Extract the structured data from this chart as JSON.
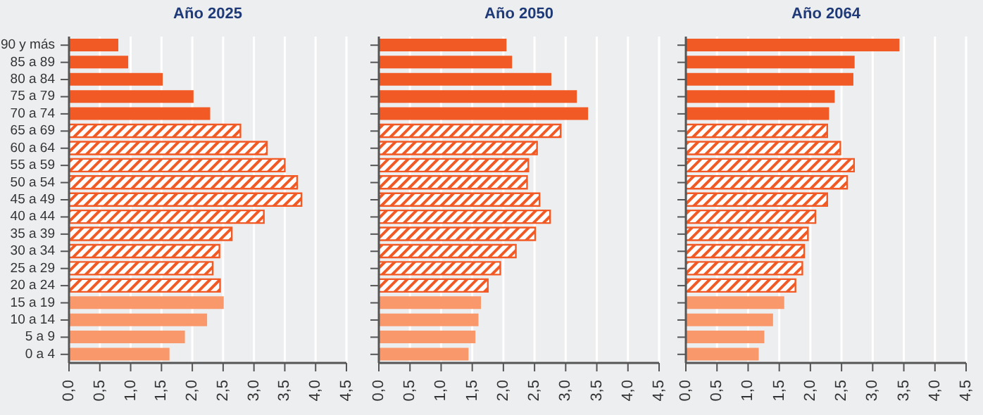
{
  "chart_data": [
    {
      "type": "bar",
      "orientation": "horizontal",
      "stacked": true,
      "title": "Año 2025",
      "grid": "x",
      "categories": [
        "90 y más",
        "85 a 89",
        "80 a 84",
        "75 a 79",
        "70 a 74",
        "65 a 69",
        "60 a 64",
        "55 a 59",
        "50 a 54",
        "45 a 49",
        "40 a 44",
        "35 a 39",
        "30 a 34",
        "25 a 29",
        "20 a 24",
        "15 a 19",
        "10 a 14",
        "5 a 9",
        "0 a 4"
      ],
      "xlim": [
        0,
        4.5
      ],
      "xticks": [
        {
          "value": 0,
          "label": "0,0"
        },
        {
          "value": 0.5,
          "label": "0,5"
        },
        {
          "value": 1,
          "label": "1,0"
        },
        {
          "value": 1.5,
          "label": "1,5"
        },
        {
          "value": 2,
          "label": "2,0"
        },
        {
          "value": 2.5,
          "label": "2,5"
        },
        {
          "value": 3,
          "label": "3,0"
        },
        {
          "value": 3.5,
          "label": "3,5"
        },
        {
          "value": 4,
          "label": "4,0"
        },
        {
          "value": 4.5,
          "label": "4,5"
        }
      ],
      "series": [
        {
          "color": "#f15a24",
          "values": [
            0.8,
            0.96,
            1.52,
            2.02,
            2.29,
            null,
            null,
            null,
            null,
            null,
            null,
            null,
            null,
            null,
            null,
            null,
            null,
            null,
            null
          ]
        },
        {
          "color": "#f15a24",
          "values": [
            null,
            null,
            null,
            null,
            null,
            2.78,
            3.21,
            3.5,
            3.7,
            3.77,
            3.16,
            2.64,
            2.44,
            2.33,
            2.45,
            null,
            null,
            null,
            null
          ]
        },
        {
          "color": "#f9996b",
          "values": [
            null,
            null,
            null,
            null,
            null,
            null,
            null,
            null,
            null,
            null,
            null,
            null,
            null,
            null,
            null,
            2.51,
            2.24,
            1.88,
            1.63
          ]
        }
      ]
    },
    {
      "type": "bar",
      "orientation": "horizontal",
      "stacked": true,
      "title": "Año 2050",
      "grid": "x",
      "categories": [
        null,
        null,
        null,
        null,
        null,
        null,
        null,
        null,
        null,
        null,
        null,
        null,
        null,
        null,
        null,
        null,
        null,
        null,
        null
      ],
      "xlim": [
        0,
        4.5
      ],
      "xticks": [
        {
          "value": 0,
          "label": "0,0"
        },
        {
          "value": 0.5,
          "label": "0,5"
        },
        {
          "value": 1,
          "label": "1,0"
        },
        {
          "value": 1.5,
          "label": "1,5"
        },
        {
          "value": 2,
          "label": "2,0"
        },
        {
          "value": 2.5,
          "label": "2,5"
        },
        {
          "value": 3,
          "label": "3,0"
        },
        {
          "value": 3.5,
          "label": "3,5"
        },
        {
          "value": 4,
          "label": "4,0"
        },
        {
          "value": 4.5,
          "label": "4,5"
        }
      ],
      "series": [
        {
          "color": "#f15a24",
          "values": [
            2.05,
            2.14,
            2.77,
            3.18,
            3.36,
            null,
            null,
            null,
            null,
            null,
            null,
            null,
            null,
            null,
            null,
            null,
            null,
            null,
            null
          ]
        },
        {
          "color": "#f15a24",
          "values": [
            null,
            null,
            null,
            null,
            null,
            2.92,
            2.54,
            2.4,
            2.38,
            2.58,
            2.75,
            2.51,
            2.2,
            1.95,
            1.75,
            null,
            null,
            null,
            null
          ]
        },
        {
          "color": "#f9996b",
          "values": [
            null,
            null,
            null,
            null,
            null,
            null,
            null,
            null,
            null,
            null,
            null,
            null,
            null,
            null,
            null,
            1.64,
            1.6,
            1.55,
            1.44
          ]
        }
      ]
    },
    {
      "type": "bar",
      "orientation": "horizontal",
      "stacked": true,
      "title": "Año 2064",
      "grid": "x",
      "categories": [
        null,
        null,
        null,
        null,
        null,
        null,
        null,
        null,
        null,
        null,
        null,
        null,
        null,
        null,
        null,
        null,
        null,
        null,
        null
      ],
      "xlim": [
        0,
        4.5
      ],
      "xticks": [
        {
          "value": 0,
          "label": "0,0"
        },
        {
          "value": 0.5,
          "label": "0,5"
        },
        {
          "value": 1,
          "label": "1,0"
        },
        {
          "value": 1.5,
          "label": "1,5"
        },
        {
          "value": 2,
          "label": "2,0"
        },
        {
          "value": 2.5,
          "label": "2,5"
        },
        {
          "value": 3,
          "label": "3,0"
        },
        {
          "value": 3.5,
          "label": "3,5"
        },
        {
          "value": 4,
          "label": "4,0"
        },
        {
          "value": 4.5,
          "label": "4,5"
        }
      ],
      "series": [
        {
          "color": "#f15a24",
          "values": [
            3.43,
            2.71,
            2.69,
            2.39,
            2.3,
            null,
            null,
            null,
            null,
            null,
            null,
            null,
            null,
            null,
            null,
            null,
            null,
            null,
            null
          ]
        },
        {
          "color": "#f15a24",
          "values": [
            null,
            null,
            null,
            null,
            null,
            2.27,
            2.48,
            2.7,
            2.59,
            2.27,
            2.08,
            1.96,
            1.9,
            1.87,
            1.76,
            null,
            null,
            null,
            null
          ]
        },
        {
          "color": "#f9996b",
          "values": [
            null,
            null,
            null,
            null,
            null,
            null,
            null,
            null,
            null,
            null,
            null,
            null,
            null,
            null,
            null,
            1.58,
            1.4,
            1.26,
            1.17
          ]
        }
      ]
    }
  ]
}
